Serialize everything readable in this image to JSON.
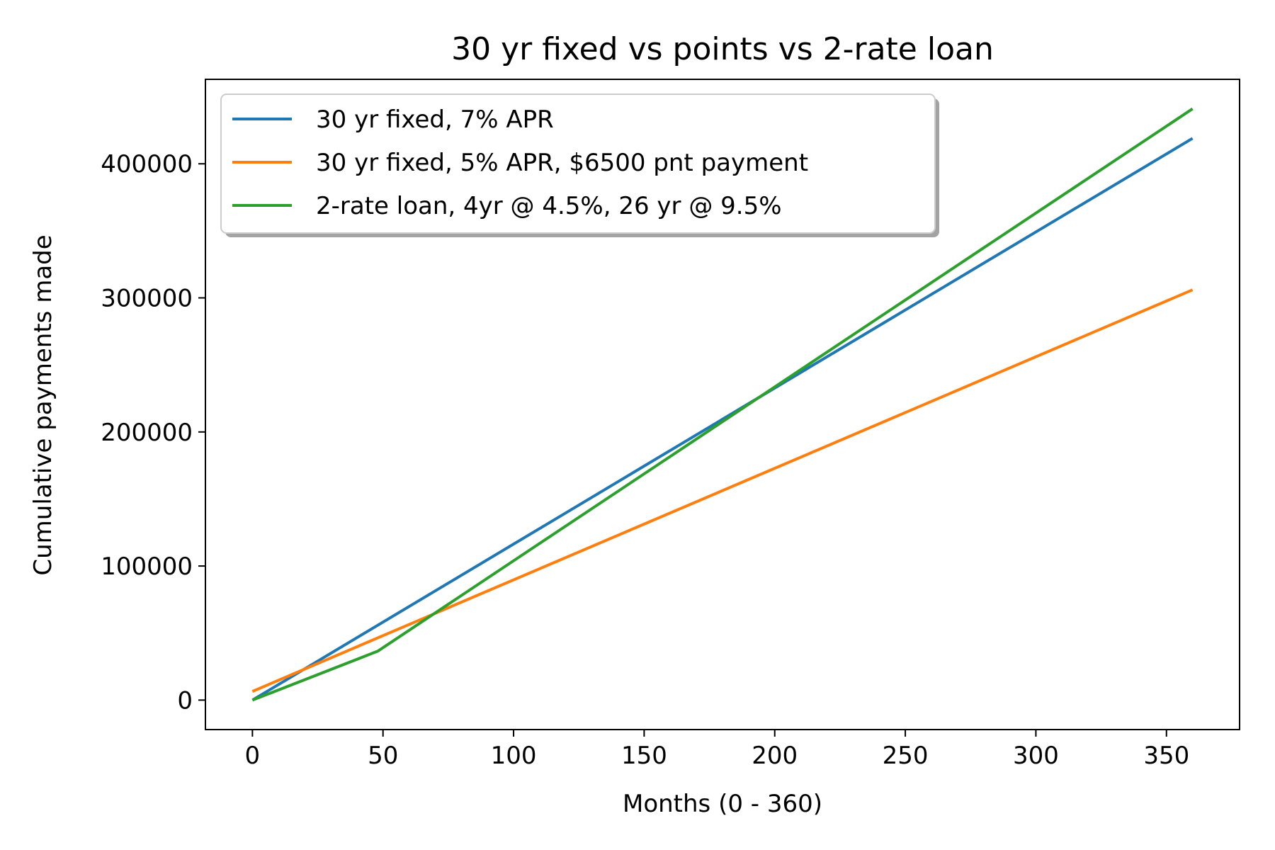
{
  "chart_data": {
    "type": "line",
    "title": "30 yr fixed vs points vs 2-rate loan",
    "xlabel": "Months (0 - 360)",
    "ylabel": "Cumulative payments made",
    "xlim": [
      -18,
      378
    ],
    "ylim": [
      -22000,
      463000
    ],
    "xticks": [
      0,
      50,
      100,
      150,
      200,
      250,
      300,
      350
    ],
    "yticks": [
      0,
      100000,
      200000,
      300000,
      400000
    ],
    "grid": false,
    "legend_position": "top-left",
    "series": [
      {
        "name": "30 yr fixed, 7% APR",
        "color": "#1f77b4",
        "x": [
          0,
          360
        ],
        "y": [
          0,
          419000
        ]
      },
      {
        "name": "30 yr fixed, 5% APR, $6500 pnt payment",
        "color": "#ff7f0e",
        "x": [
          0,
          360
        ],
        "y": [
          6500,
          306000
        ]
      },
      {
        "name": "2-rate loan, 4yr @ 4.5%, 26 yr @ 9.5%",
        "color": "#2ca02c",
        "x": [
          0,
          48,
          360
        ],
        "y": [
          0,
          36500,
          441000
        ]
      }
    ]
  }
}
